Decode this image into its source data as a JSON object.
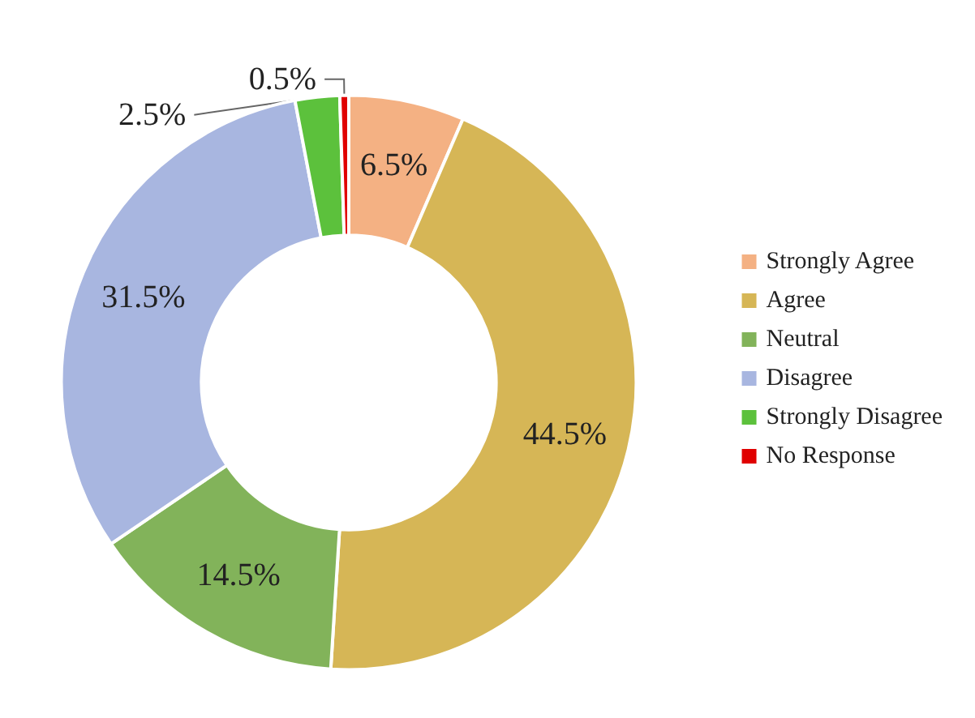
{
  "chart_data": {
    "type": "donut",
    "categories": [
      "Strongly Agree",
      "Agree",
      "Neutral",
      "Disagree",
      "Strongly Disagree",
      "No Response"
    ],
    "values": [
      6.5,
      44.5,
      14.5,
      31.5,
      2.5,
      0.5
    ],
    "colors": [
      "#f4b183",
      "#d6b656",
      "#82b35a",
      "#a8b6e0",
      "#5cc13c",
      "#e00000"
    ],
    "value_labels": [
      "6.5%",
      "44.5%",
      "14.5%",
      "31.5%",
      "2.5%",
      "0.5%"
    ],
    "legend": "right"
  }
}
